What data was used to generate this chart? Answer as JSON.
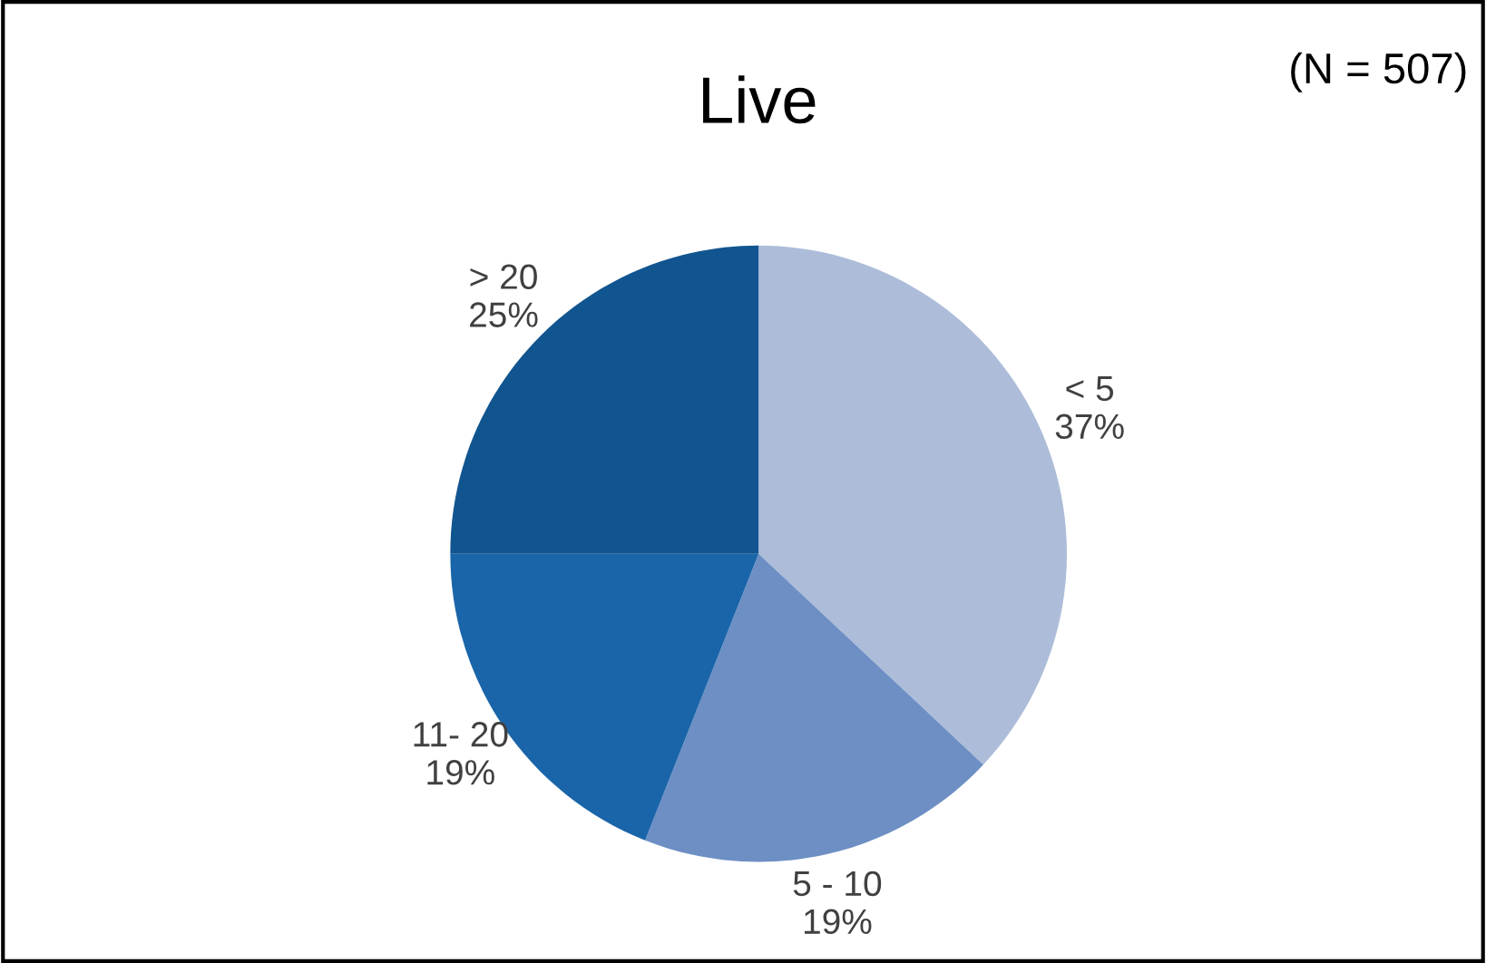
{
  "chart_data": {
    "type": "pie",
    "title": "Live",
    "annotations": [
      "(N = 507)"
    ],
    "categories": [
      "< 5",
      "5 - 10",
      "11- 20",
      "> 20"
    ],
    "values": [
      37,
      19,
      19,
      25
    ],
    "value_labels": [
      "37%",
      "19%",
      "19%",
      "25%"
    ],
    "colors": [
      "#adbdd9",
      "#6d8fc4",
      "#1a65a9",
      "#115590"
    ]
  }
}
